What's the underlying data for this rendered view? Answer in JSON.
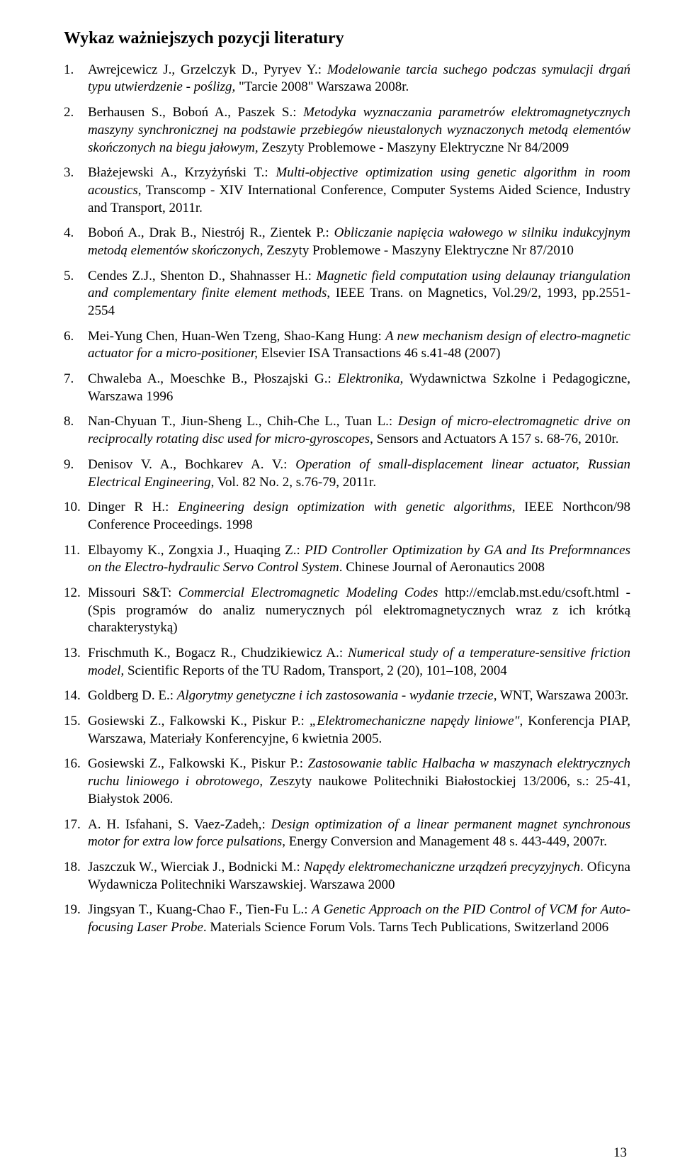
{
  "title": "Wykaz ważniejszych pozycji literatury",
  "page_number": "13",
  "entries": [
    {
      "num": "1.",
      "authors": "Awrejcewicz J., Grzelczyk D., Pyryev Y.: ",
      "title_it": "Modelowanie tarcia suchego podczas symulacji drgań typu utwierdzenie - poślizg, ",
      "tail": "\"Tarcie 2008\" Warszawa 2008r."
    },
    {
      "num": "2.",
      "authors": "Berhausen S., Boboń A., Paszek S.: ",
      "title_it": "Metodyka wyznaczania parametrów elektromagnetycznych maszyny synchronicznej na podstawie przebiegów nieustalonych wyznaczonych metodą elementów skończonych na biegu jałowym, ",
      "tail": "Zeszyty Problemowe - Maszyny Elektryczne Nr 84/2009"
    },
    {
      "num": "3.",
      "authors": "Błażejewski A., Krzyżyński T.: ",
      "title_it": "Multi-objective optimization using genetic algorithm in room acoustics",
      "tail": ", Transcomp - XIV International Conference, Computer Systems Aided Science, Industry and Transport, 2011r."
    },
    {
      "num": "4.",
      "authors": "Boboń A., Drak B., Niestrój R., Zientek P.: ",
      "title_it": "Obliczanie napięcia wałowego w silniku indukcyjnym metodą elementów skończonych",
      "tail": ", Zeszyty Problemowe - Maszyny Elektryczne Nr 87/2010"
    },
    {
      "num": "5.",
      "authors": "Cendes Z.J., Shenton D., Shahnasser H.: ",
      "title_it": "Magnetic field computation using delaunay triangulation and complementary finite element methods",
      "tail": ", IEEE Trans. on Magnetics, Vol.29/2, 1993, pp.2551-2554"
    },
    {
      "num": "6.",
      "authors": "Mei-Yung Chen, Huan-Wen Tzeng, Shao-Kang Hung: ",
      "title_it": "A new mechanism design of electro-magnetic actuator for a micro-positioner, ",
      "tail": "Elsevier ISA Transactions 46 s.41-48 (2007)"
    },
    {
      "num": "7.",
      "authors": "Chwaleba A., Moeschke B., Płoszajski G.: ",
      "title_it": "Elektronika",
      "tail": ", Wydawnictwa Szkolne i Pedagogiczne, Warszawa 1996"
    },
    {
      "num": "8.",
      "authors": "Nan-Chyuan T., Jiun-Sheng L., Chih-Che L., Tuan L.: ",
      "title_it": "Design of micro-electromagnetic drive on reciprocally rotating disc used for micro-gyroscopes",
      "tail": ", Sensors and Actuators A 157 s. 68-76, 2010r."
    },
    {
      "num": "9.",
      "authors": "Denisov V. A., Bochkarev A. V.: ",
      "title_it": "Operation of small-displacement linear actuator, Russian Electrical Engineering",
      "tail": ", Vol. 82 No. 2, s.76-79, 2011r."
    },
    {
      "num": "10.",
      "authors": "Dinger R H.: ",
      "title_it": "Engineering design optimization with genetic algorithms",
      "tail": ", IEEE Northcon/98 Conference Proceedings. 1998"
    },
    {
      "num": "11.",
      "authors": "Elbayomy K., Zongxia J., Huaqing Z.: ",
      "title_it": "PID Controller Optimization by GA and Its Preformnances on the Electro-hydraulic Servo Control System",
      "tail": ". Chinese Journal of Aeronautics 2008"
    },
    {
      "num": "12.",
      "authors": "Missouri S&T: ",
      "title_it": "Commercial Electromagnetic Modeling Codes ",
      "tail": "http://emclab.mst.edu/csoft.html - (Spis programów do analiz numerycznych pól elektromagnetycznych wraz z ich krótką charakterystyką)"
    },
    {
      "num": "13.",
      "authors": "Frischmuth K., Bogacz R., Chudzikiewicz A.: ",
      "title_it": "Numerical study of a temperature-sensitive friction model",
      "tail": ", Scientific Reports of the TU Radom, Transport, 2 (20), 101–108, 2004"
    },
    {
      "num": "14.",
      "authors": "Goldberg D. E.: ",
      "title_it": "Algorytmy genetyczne i ich zastosowania - wydanie trzecie",
      "tail": ", WNT, Warszawa 2003r."
    },
    {
      "num": "15.",
      "authors": "Gosiewski Z., Falkowski K., Piskur P.: ",
      "title_it": "„Elektromechaniczne napędy liniowe\"",
      "tail": ", Konferencja PIAP, Warszawa, Materiały Konferencyjne, 6 kwietnia 2005."
    },
    {
      "num": "16.",
      "authors": "Gosiewski Z., Falkowski K., Piskur P.: ",
      "title_it": "Zastosowanie tablic Halbacha w maszynach elektrycznych ruchu liniowego i obrotowego",
      "tail": ", Zeszyty naukowe Politechniki Białostockiej 13/2006, s.: 25-41, Białystok 2006."
    },
    {
      "num": "17.",
      "authors": "A. H. Isfahani, S. Vaez-Zadeh,: ",
      "title_it": "Design optimization of a linear permanent magnet synchronous motor for extra low force pulsations",
      "tail": ", Energy Conversion and Management 48 s. 443-449, 2007r."
    },
    {
      "num": "18.",
      "authors": "Jaszczuk W., Wierciak J., Bodnicki M.: ",
      "title_it": "Napędy elektromechaniczne urządzeń precyzyjnych",
      "tail": ". Oficyna Wydawnicza Politechniki Warszawskiej. Warszawa 2000"
    },
    {
      "num": "19.",
      "authors": "Jingsyan T., Kuang-Chao F., Tien-Fu L.: ",
      "title_it": "A Genetic Approach on the PID Control of VCM for Auto-focusing Laser Probe",
      "tail": ". Materials Science Forum Vols. Tarns Tech Publications, Switzerland 2006"
    }
  ]
}
